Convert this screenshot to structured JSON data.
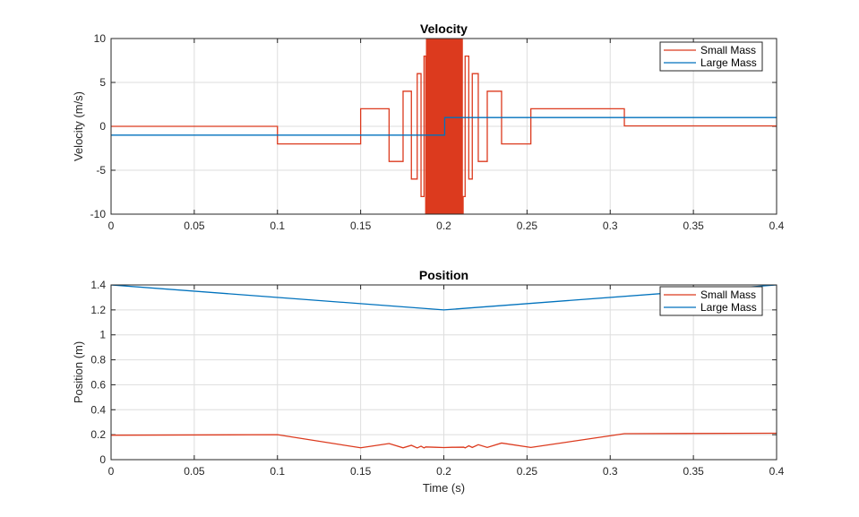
{
  "colors": {
    "small": "#dc3a1e",
    "large": "#0072bd",
    "grid": "#dedede",
    "axis": "#262626"
  },
  "chart_data": [
    {
      "type": "line",
      "title": "Velocity",
      "xlabel": "",
      "ylabel": "Velocity (m/s)",
      "xlim": [
        0,
        0.4
      ],
      "ylim": [
        -10,
        10
      ],
      "xticks": [
        0,
        0.05,
        0.1,
        0.15,
        0.2,
        0.25,
        0.3,
        0.35,
        0.4
      ],
      "xtick_labels": [
        "0",
        "0.05",
        "0.1",
        "0.15",
        "0.2",
        "0.25",
        "0.3",
        "0.35",
        "0.4"
      ],
      "yticks": [
        -10,
        -5,
        0,
        5,
        10
      ],
      "ytick_labels": [
        "-10",
        "-5",
        "0",
        "5",
        "10"
      ],
      "grid": true,
      "legend_placement": "top-right",
      "series": [
        {
          "name": "Small Mass",
          "style": "step",
          "end": 0.4,
          "steps": [
            [
              0,
              0
            ],
            [
              0.1,
              -2
            ],
            [
              0.15,
              2
            ],
            [
              0.1671,
              -4
            ],
            [
              0.1755,
              4
            ],
            [
              0.1805,
              -6
            ],
            [
              0.184,
              6
            ],
            [
              0.1863,
              -8
            ],
            [
              0.1881,
              8
            ],
            [
              0.1891,
              -12
            ],
            [
              0.1896,
              12
            ],
            [
              0.1901,
              -12
            ],
            [
              0.1906,
              12
            ],
            [
              0.1911,
              -12
            ],
            [
              0.1916,
              12
            ],
            [
              0.1921,
              -12
            ],
            [
              0.1926,
              12
            ],
            [
              0.1931,
              -12
            ],
            [
              0.1936,
              12
            ],
            [
              0.1941,
              -12
            ],
            [
              0.1946,
              12
            ],
            [
              0.1951,
              -12
            ],
            [
              0.1956,
              12
            ],
            [
              0.1961,
              -12
            ],
            [
              0.1966,
              12
            ],
            [
              0.1971,
              -12
            ],
            [
              0.1976,
              12
            ],
            [
              0.1981,
              -12
            ],
            [
              0.1986,
              12
            ],
            [
              0.1991,
              -12
            ],
            [
              0.1996,
              12
            ],
            [
              0.2001,
              -12
            ],
            [
              0.2006,
              12
            ],
            [
              0.2011,
              -12
            ],
            [
              0.2016,
              12
            ],
            [
              0.2021,
              -12
            ],
            [
              0.2026,
              12
            ],
            [
              0.2031,
              -12
            ],
            [
              0.2036,
              12
            ],
            [
              0.2041,
              -12
            ],
            [
              0.2046,
              12
            ],
            [
              0.2051,
              -12
            ],
            [
              0.2056,
              12
            ],
            [
              0.2061,
              -12
            ],
            [
              0.2066,
              12
            ],
            [
              0.2071,
              -12
            ],
            [
              0.2076,
              12
            ],
            [
              0.2081,
              -12
            ],
            [
              0.2086,
              12
            ],
            [
              0.2091,
              -12
            ],
            [
              0.2096,
              12
            ],
            [
              0.2101,
              -12
            ],
            [
              0.2106,
              12
            ],
            [
              0.2111,
              -12
            ],
            [
              0.2116,
              -8
            ],
            [
              0.2128,
              8
            ],
            [
              0.215,
              -6
            ],
            [
              0.2171,
              6
            ],
            [
              0.2207,
              -4
            ],
            [
              0.2261,
              4
            ],
            [
              0.2347,
              -2
            ],
            [
              0.2523,
              2
            ],
            [
              0.3085,
              0.05
            ]
          ]
        },
        {
          "name": "Large Mass",
          "style": "step",
          "end": 0.4,
          "steps": [
            [
              0,
              -1
            ],
            [
              0.2005,
              1
            ]
          ]
        }
      ]
    },
    {
      "type": "line",
      "title": "Position",
      "xlabel": "Time (s)",
      "ylabel": "Position (m)",
      "xlim": [
        0,
        0.4
      ],
      "ylim": [
        0,
        1.4
      ],
      "xticks": [
        0,
        0.05,
        0.1,
        0.15,
        0.2,
        0.25,
        0.3,
        0.35,
        0.4
      ],
      "xtick_labels": [
        "0",
        "0.05",
        "0.1",
        "0.15",
        "0.2",
        "0.25",
        "0.3",
        "0.35",
        "0.4"
      ],
      "yticks": [
        0,
        0.2,
        0.4,
        0.6,
        0.8,
        1,
        1.2,
        1.4
      ],
      "ytick_labels": [
        "0",
        "0.2",
        "0.4",
        "0.6",
        "0.8",
        "1",
        "1.2",
        "1.4"
      ],
      "grid": true,
      "legend_placement": "top-right",
      "series": [
        {
          "name": "Small Mass",
          "x": [
            0,
            0.1,
            0.15,
            0.1671,
            0.1755,
            0.1805,
            0.184,
            0.1863,
            0.1881,
            0.1891,
            0.195,
            0.2,
            0.205,
            0.212,
            0.2128,
            0.215,
            0.2171,
            0.2207,
            0.2261,
            0.2347,
            0.2523,
            0.3085,
            0.4
          ],
          "y": [
            0.196,
            0.2,
            0.095,
            0.129,
            0.095,
            0.115,
            0.094,
            0.108,
            0.094,
            0.102,
            0.099,
            0.097,
            0.099,
            0.1,
            0.094,
            0.111,
            0.098,
            0.12,
            0.098,
            0.133,
            0.098,
            0.208,
            0.212
          ]
        },
        {
          "name": "Large Mass",
          "x": [
            0,
            0.2,
            0.4
          ],
          "y": [
            1.4,
            1.2,
            1.4
          ]
        }
      ]
    }
  ]
}
